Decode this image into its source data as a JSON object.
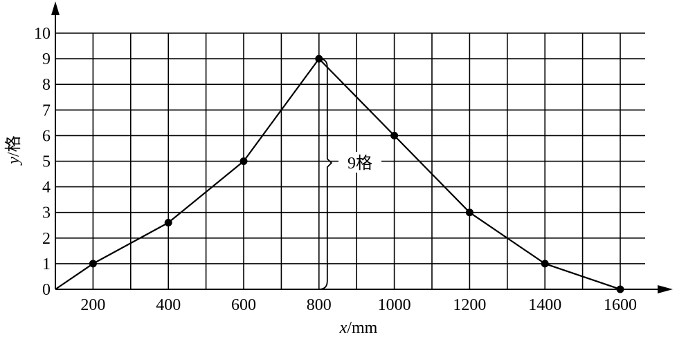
{
  "chart_data": {
    "type": "line",
    "x": [
      100,
      200,
      400,
      600,
      800,
      1000,
      1200,
      1400,
      1600
    ],
    "y": [
      0,
      1,
      2.6,
      5,
      9,
      6,
      3,
      1,
      0
    ],
    "marked_points": [
      1,
      2,
      3,
      4,
      5,
      6,
      7,
      8
    ],
    "xlabel_var": "x",
    "xlabel_unit": "/mm",
    "ylabel_var": "y",
    "ylabel_unit": "/格",
    "x_ticks": [
      "200",
      "400",
      "600",
      "800",
      "1000",
      "1200",
      "1400",
      "1600"
    ],
    "y_ticks": [
      "0",
      "1",
      "2",
      "3",
      "4",
      "5",
      "6",
      "7",
      "8",
      "9",
      "10"
    ],
    "xlim": [
      100,
      1600
    ],
    "ylim": [
      0,
      10
    ],
    "grid": true,
    "annotation": {
      "text": "9格",
      "x": 800,
      "from_y": 0,
      "to_y": 9
    }
  }
}
